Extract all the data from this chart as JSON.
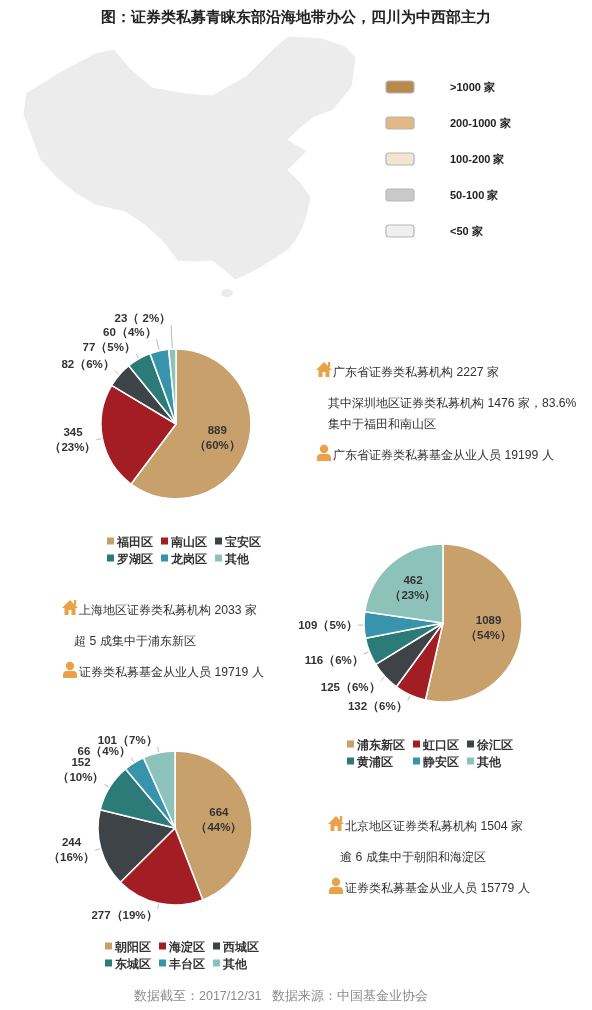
{
  "chart_data": [
    {
      "type": "other",
      "title": "图：证券类私募青睐东部沿海地带办公，四川为中西部主力",
      "categories": [
        ">1000 家",
        "200-1000 家",
        "100-200 家",
        "50-100 家",
        "<50 家"
      ],
      "colors": [
        "#b98a50",
        "#e2b984",
        "#f2e6d2",
        "#c9c9cb",
        "#efeff0"
      ]
    },
    {
      "type": "pie",
      "categories": [
        "福田区",
        "南山区",
        "宝安区",
        "罗湖区",
        "龙岗区",
        "其他"
      ],
      "values": [
        889,
        345,
        82,
        77,
        60,
        23
      ],
      "value_labels": [
        "889\n（60%）",
        "345\n（23%）",
        "82（6%）",
        "77（5%）",
        "60（4%）",
        "23（ 2%）"
      ],
      "colors": [
        "#c8a06b",
        "#a31d24",
        "#3e4347",
        "#2c7b79",
        "#3894ac",
        "#8dc2ba"
      ],
      "legend": "bottom",
      "annotations": [
        "广东省证券类私募机构 2227 家",
        "其中深圳地区证券类私募机构 1476 家，83.6%集中于福田和南山区",
        "广东省证券类私募基金从业人员 19199 人"
      ]
    },
    {
      "type": "pie",
      "categories": [
        "浦东新区",
        "虹口区",
        "徐汇区",
        "黄浦区",
        "静安区",
        "其他"
      ],
      "values": [
        1089,
        132,
        125,
        116,
        109,
        462
      ],
      "value_labels": [
        "1089\n（54%）",
        "132（6%）",
        "125（6%）",
        "116（6%）",
        "109（5%）",
        "462\n（23%）"
      ],
      "colors": [
        "#c8a06b",
        "#a31d24",
        "#3e4347",
        "#2c7b79",
        "#3894ac",
        "#8dc2ba"
      ],
      "legend": "bottom",
      "annotations": [
        "上海地区证券类私募机构 2033 家",
        "超 5 成集中于浦东新区",
        "证券类私募基金从业人员 19719 人"
      ]
    },
    {
      "type": "pie",
      "categories": [
        "朝阳区",
        "海淀区",
        "西城区",
        "东城区",
        "丰台区",
        "其他"
      ],
      "values": [
        664,
        277,
        244,
        152,
        66,
        101
      ],
      "value_labels": [
        "664\n（44%）",
        "277（19%）",
        "244\n（16%）",
        "152\n（10%）",
        "66（4%）",
        "101（7%）"
      ],
      "colors": [
        "#c8a06b",
        "#a31d24",
        "#3e4347",
        "#2c7b79",
        "#3894ac",
        "#8dc2ba"
      ],
      "legend": "bottom",
      "annotations": [
        "北京地区证券类私募机构 1504 家",
        "逾 6 成集中于朝阳和海淀区",
        "证券类私募基金从业人员 15779 人",
        "数据截至：2017/12/31   数据来源：中国基金业协会"
      ]
    }
  ]
}
